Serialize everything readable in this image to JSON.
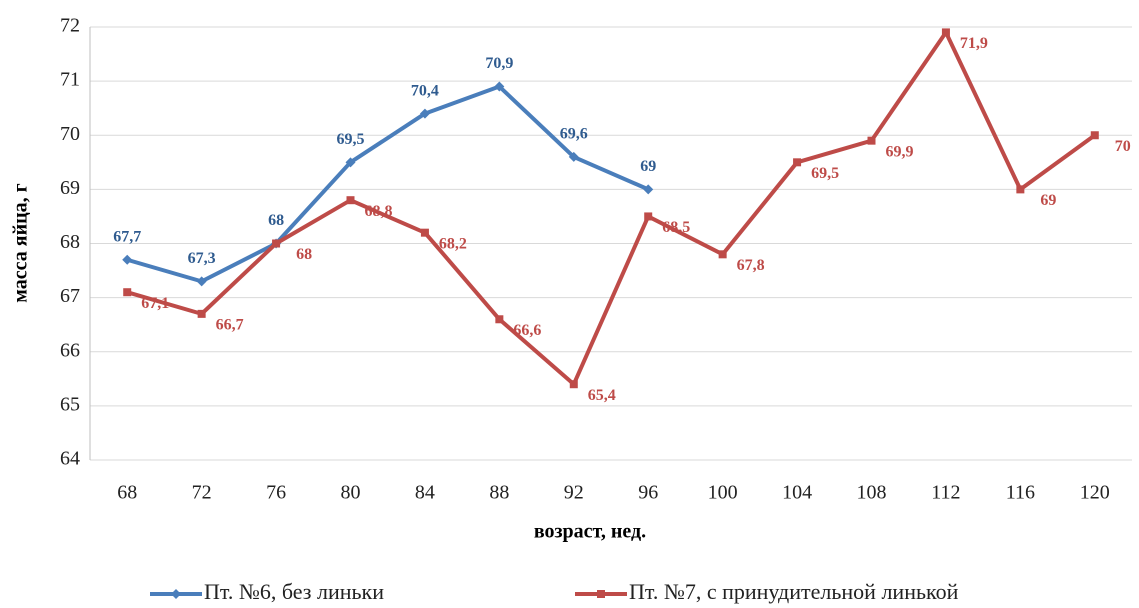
{
  "chart_data": {
    "type": "line",
    "xlabel": "возраст, нед.",
    "ylabel": "масса яйца, г",
    "categories": [
      "68",
      "72",
      "76",
      "80",
      "84",
      "88",
      "92",
      "96",
      "100",
      "104",
      "108",
      "112",
      "116",
      "120"
    ],
    "series": [
      {
        "name": "Пт. №6, без линьки",
        "color": "#4a7ebb",
        "values": [
          67.7,
          67.3,
          68,
          69.5,
          70.4,
          70.9,
          69.6,
          69,
          null,
          null,
          null,
          null,
          null,
          null
        ],
        "value_labels": [
          "67,7",
          "67,3",
          "68",
          "69,5",
          "70,4",
          "70,9",
          "69,6",
          "69",
          null,
          null,
          null,
          null,
          null,
          null
        ]
      },
      {
        "name": "Пт. №7, с принудительной линькой",
        "color": "#be4b48",
        "values": [
          67.1,
          66.7,
          68,
          68.8,
          68.2,
          66.6,
          65.4,
          68.5,
          67.8,
          69.5,
          69.9,
          71.9,
          69,
          70
        ],
        "value_labels": [
          "67,1",
          "66,7",
          "68",
          "68,8",
          "68,2",
          "66,6",
          "65,4",
          "68,5",
          "67,8",
          "69,5",
          "69,9",
          "71,9",
          "69",
          "70"
        ]
      }
    ],
    "ylim": [
      64,
      72
    ],
    "yticks": [
      64,
      65,
      66,
      67,
      68,
      69,
      70,
      71,
      72
    ],
    "grid": true,
    "legend": "bottom"
  }
}
